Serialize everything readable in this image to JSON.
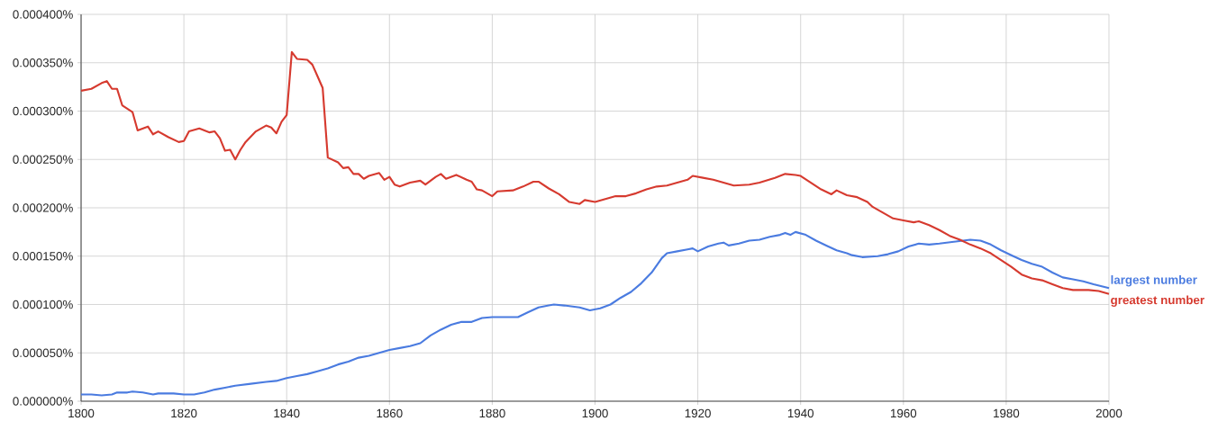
{
  "chart_data": {
    "type": "line",
    "xlim": [
      1800,
      2000
    ],
    "ylim": [
      0,
      0.0004
    ],
    "xticks": [
      1800,
      1820,
      1840,
      1860,
      1880,
      1900,
      1920,
      1940,
      1960,
      1980,
      2000
    ],
    "yticks": [
      {
        "value": 0,
        "label": "0.000000%"
      },
      {
        "value": 5e-05,
        "label": "0.000050%"
      },
      {
        "value": 0.0001,
        "label": "0.000100%"
      },
      {
        "value": 0.00015,
        "label": "0.000150%"
      },
      {
        "value": 0.0002,
        "label": "0.000200%"
      },
      {
        "value": 0.00025,
        "label": "0.000250%"
      },
      {
        "value": 0.0003,
        "label": "0.000300%"
      },
      {
        "value": 0.00035,
        "label": "0.000350%"
      },
      {
        "value": 0.0004,
        "label": "0.000400%"
      }
    ],
    "grid": true,
    "series": [
      {
        "name": "largest number",
        "color": "#4a7be0",
        "x": [
          1800,
          1802,
          1804,
          1806,
          1807,
          1809,
          1810,
          1812,
          1814,
          1815,
          1818,
          1820,
          1822,
          1824,
          1826,
          1828,
          1830,
          1833,
          1836,
          1838,
          1840,
          1842,
          1844,
          1846,
          1848,
          1850,
          1852,
          1854,
          1856,
          1858,
          1860,
          1862,
          1864,
          1866,
          1868,
          1870,
          1872,
          1874,
          1876,
          1878,
          1880,
          1882,
          1885,
          1887,
          1889,
          1891,
          1892,
          1894,
          1897,
          1899,
          1901,
          1903,
          1905,
          1907,
          1909,
          1911,
          1913,
          1914,
          1916,
          1918,
          1919,
          1920,
          1922,
          1924,
          1925,
          1926,
          1928,
          1930,
          1932,
          1934,
          1936,
          1937,
          1938,
          1939,
          1941,
          1943,
          1945,
          1947,
          1949,
          1950,
          1952,
          1955,
          1957,
          1959,
          1961,
          1963,
          1965,
          1967,
          1970,
          1973,
          1975,
          1977,
          1979,
          1981,
          1983,
          1985,
          1987,
          1989,
          1991,
          1993,
          1995,
          1997,
          2000
        ],
        "values": [
          7e-06,
          7e-06,
          6e-06,
          7e-06,
          9e-06,
          9e-06,
          1e-05,
          9e-06,
          7e-06,
          8e-06,
          8e-06,
          7e-06,
          7e-06,
          9e-06,
          1.2e-05,
          1.4e-05,
          1.6e-05,
          1.8e-05,
          2e-05,
          2.1e-05,
          2.4e-05,
          2.6e-05,
          2.8e-05,
          3.1e-05,
          3.4e-05,
          3.8e-05,
          4.1e-05,
          4.5e-05,
          4.7e-05,
          5e-05,
          5.3e-05,
          5.5e-05,
          5.7e-05,
          6e-05,
          6.8e-05,
          7.4e-05,
          7.9e-05,
          8.2e-05,
          8.2e-05,
          8.6e-05,
          8.7e-05,
          8.7e-05,
          8.7e-05,
          9.2e-05,
          9.7e-05,
          9.9e-05,
          0.0001,
          9.9e-05,
          9.7e-05,
          9.4e-05,
          9.6e-05,
          0.0001,
          0.000107,
          0.000113,
          0.000122,
          0.000133,
          0.000148,
          0.000153,
          0.000155,
          0.000157,
          0.000158,
          0.000155,
          0.00016,
          0.000163,
          0.000164,
          0.000161,
          0.000163,
          0.000166,
          0.000167,
          0.00017,
          0.000172,
          0.000174,
          0.000172,
          0.000175,
          0.000172,
          0.000166,
          0.000161,
          0.000156,
          0.000153,
          0.000151,
          0.000149,
          0.00015,
          0.000152,
          0.000155,
          0.00016,
          0.000163,
          0.000162,
          0.000163,
          0.000165,
          0.000167,
          0.000166,
          0.000162,
          0.000156,
          0.000151,
          0.000146,
          0.000142,
          0.000139,
          0.000133,
          0.000128,
          0.000126,
          0.000124,
          0.000121,
          0.000117
        ]
      },
      {
        "name": "greatest number",
        "color": "#d63a2f",
        "x": [
          1800,
          1802,
          1804,
          1805,
          1806,
          1807,
          1808,
          1810,
          1811,
          1813,
          1814,
          1815,
          1817,
          1819,
          1820,
          1821,
          1823,
          1825,
          1826,
          1827,
          1828,
          1829,
          1830,
          1831,
          1832,
          1834,
          1836,
          1837,
          1838,
          1839,
          1840,
          1841,
          1842,
          1844,
          1845,
          1846,
          1847,
          1848,
          1850,
          1851,
          1852,
          1853,
          1854,
          1855,
          1856,
          1858,
          1859,
          1860,
          1861,
          1862,
          1864,
          1866,
          1867,
          1869,
          1870,
          1871,
          1873,
          1875,
          1876,
          1877,
          1878,
          1880,
          1881,
          1884,
          1886,
          1888,
          1889,
          1891,
          1893,
          1895,
          1897,
          1898,
          1900,
          1902,
          1904,
          1906,
          1908,
          1910,
          1912,
          1914,
          1916,
          1918,
          1919,
          1921,
          1923,
          1925,
          1927,
          1930,
          1932,
          1935,
          1937,
          1939,
          1940,
          1942,
          1944,
          1946,
          1947,
          1949,
          1951,
          1953,
          1954,
          1956,
          1958,
          1960,
          1962,
          1963,
          1965,
          1967,
          1969,
          1971,
          1973,
          1975,
          1977,
          1979,
          1981,
          1983,
          1985,
          1987,
          1989,
          1991,
          1993,
          1996,
          1998,
          2000
        ],
        "values": [
          0.000321,
          0.000323,
          0.000329,
          0.000331,
          0.000323,
          0.000323,
          0.000306,
          0.000299,
          0.00028,
          0.000284,
          0.000276,
          0.000279,
          0.000273,
          0.000268,
          0.000269,
          0.000279,
          0.000282,
          0.000278,
          0.000279,
          0.000272,
          0.000259,
          0.00026,
          0.00025,
          0.00026,
          0.000268,
          0.000279,
          0.000285,
          0.000283,
          0.000277,
          0.000289,
          0.000296,
          0.000361,
          0.000354,
          0.000353,
          0.000348,
          0.000336,
          0.000324,
          0.000252,
          0.000247,
          0.000241,
          0.000242,
          0.000235,
          0.000235,
          0.00023,
          0.000233,
          0.000236,
          0.000229,
          0.000232,
          0.000224,
          0.000222,
          0.000226,
          0.000228,
          0.000224,
          0.000232,
          0.000235,
          0.00023,
          0.000234,
          0.000229,
          0.000227,
          0.000219,
          0.000218,
          0.000212,
          0.000217,
          0.000218,
          0.000222,
          0.000227,
          0.000227,
          0.00022,
          0.000214,
          0.000206,
          0.000204,
          0.000208,
          0.000206,
          0.000209,
          0.000212,
          0.000212,
          0.000215,
          0.000219,
          0.000222,
          0.000223,
          0.000226,
          0.000229,
          0.000233,
          0.000231,
          0.000229,
          0.000226,
          0.000223,
          0.000224,
          0.000226,
          0.000231,
          0.000235,
          0.000234,
          0.000233,
          0.000226,
          0.000219,
          0.000214,
          0.000218,
          0.000213,
          0.000211,
          0.000206,
          0.000201,
          0.000195,
          0.000189,
          0.000187,
          0.000185,
          0.000186,
          0.000182,
          0.000177,
          0.000171,
          0.000167,
          0.000162,
          0.000158,
          0.000153,
          0.000146,
          0.000139,
          0.000131,
          0.000127,
          0.000125,
          0.000121,
          0.000117,
          0.000115,
          0.000115,
          0.000114,
          0.000111
        ]
      }
    ]
  }
}
